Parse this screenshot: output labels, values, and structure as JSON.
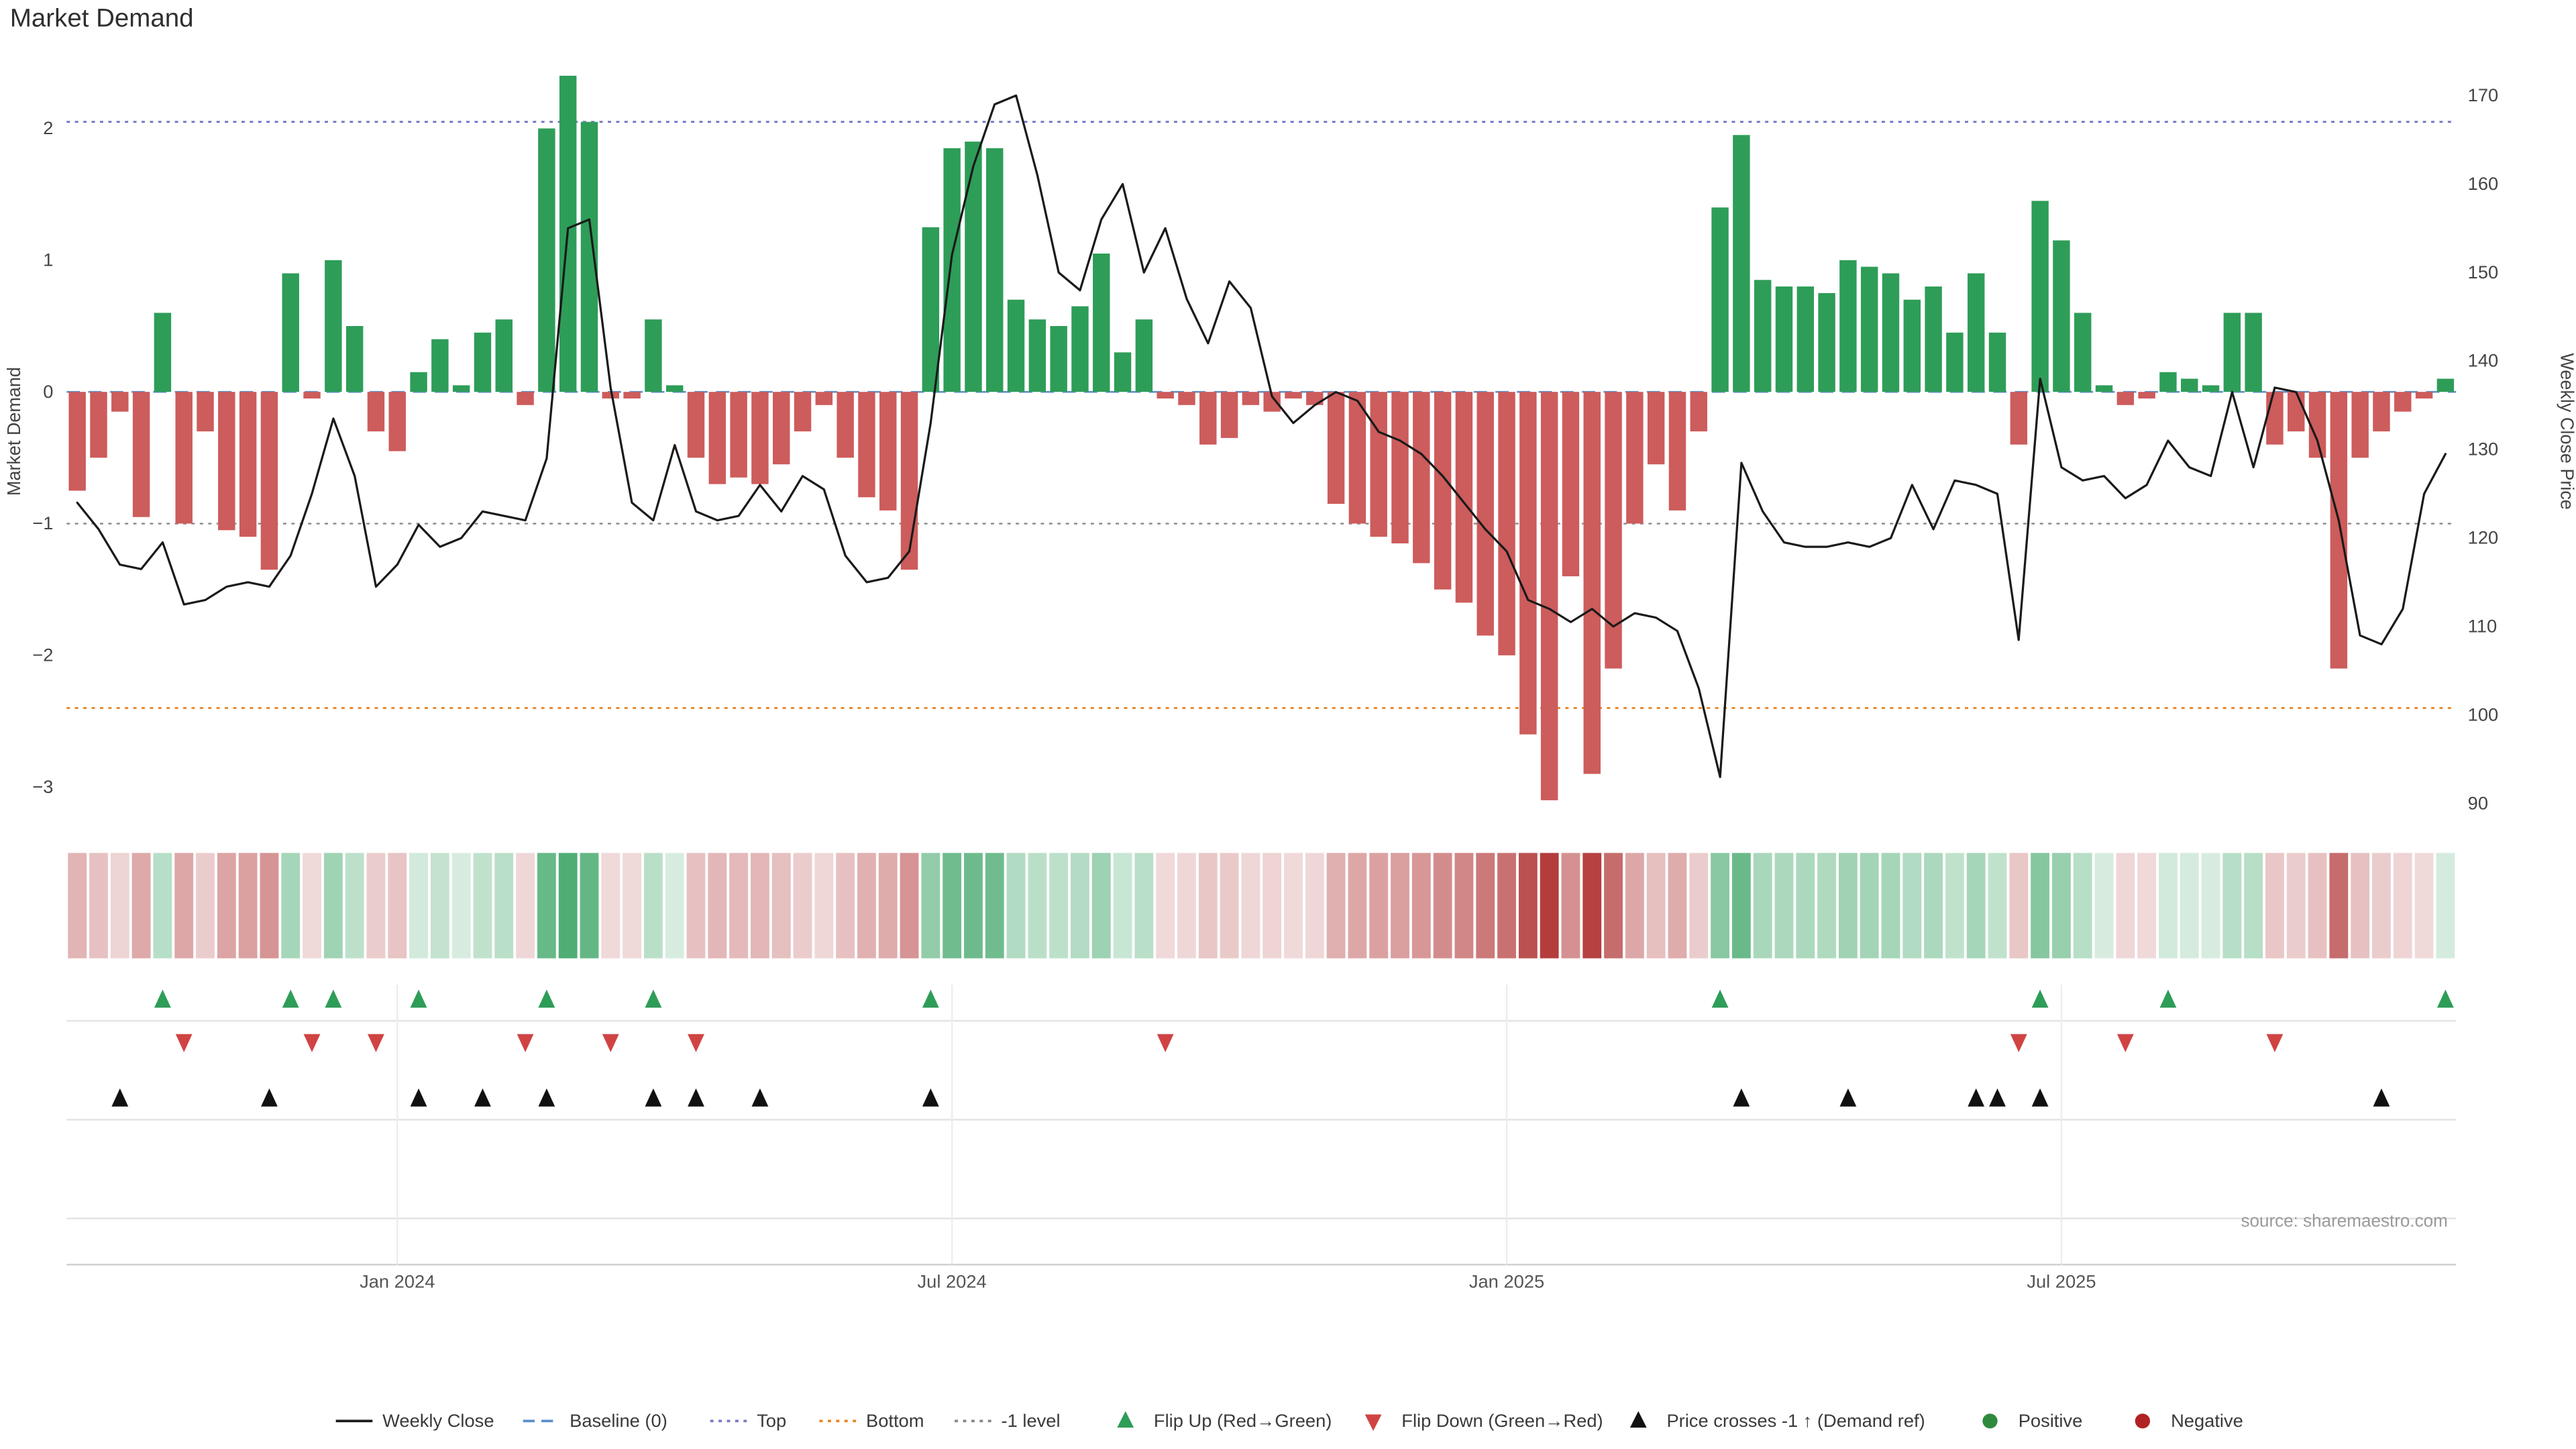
{
  "title": "Market Demand",
  "source": "source: sharemaestro.com",
  "axes": {
    "left_label": "Market Demand",
    "right_label": "Weekly Close Price",
    "left_tick_values": [
      2,
      1,
      0,
      -1,
      -2,
      -3
    ],
    "left_tick_labels": [
      "2",
      "1",
      "0",
      "−1",
      "−2",
      "−3"
    ],
    "right_tick_values": [
      170,
      160,
      150,
      140,
      130,
      120,
      110,
      100,
      90
    ],
    "right_tick_labels": [
      "170",
      "160",
      "150",
      "140",
      "130",
      "120",
      "110",
      "100",
      "90"
    ],
    "month_ticks": [
      {
        "label": "Jan 2024",
        "index": 15.5
      },
      {
        "label": "Jul 2024",
        "index": 41.5
      },
      {
        "label": "Jan 2025",
        "index": 67.5
      },
      {
        "label": "Jul 2025",
        "index": 93.5
      }
    ]
  },
  "colors": {
    "bar_positive": "#2e9d58",
    "bar_negative": "#cd5c5c",
    "heat_positive_base": "#2e9e5a",
    "heat_negative_base": "#b43c3c",
    "price_line": "#1a1a1a",
    "baseline": "#5b8fc9",
    "top_line": "#7a7ac8",
    "bottom_line": "#e8872a",
    "minus_one_line": "#888888",
    "flip_up_marker": "#2e9d58",
    "flip_down_marker": "#d04343",
    "price_cross_marker": "#111111",
    "positive_dot": "#2e8b3e",
    "negative_dot": "#b22222",
    "grid": "#e3e3e3",
    "axis_text": "#444444",
    "source_text": "#9a9a9a"
  },
  "legend": [
    {
      "label": "Weekly Close",
      "icon": "line",
      "color": "#1a1a1a"
    },
    {
      "label": "Baseline (0)",
      "icon": "dash",
      "color": "#5b8fc9"
    },
    {
      "label": "Top",
      "icon": "dot",
      "color": "#7a7ac8"
    },
    {
      "label": "Bottom",
      "icon": "dot",
      "color": "#e8872a"
    },
    {
      "label": "-1 level",
      "icon": "dot",
      "color": "#888888"
    },
    {
      "label": "Flip Up (Red→Green)",
      "icon": "tri-up",
      "color": "#2e9d58"
    },
    {
      "label": "Flip Down (Green→Red)",
      "icon": "tri-down",
      "color": "#d04343"
    },
    {
      "label": "Price crosses -1 ↑ (Demand ref)",
      "icon": "tri-up",
      "color": "#111111"
    },
    {
      "label": "Positive",
      "icon": "circle",
      "color": "#2e8b3e"
    },
    {
      "label": "Negative",
      "icon": "circle",
      "color": "#b22222"
    }
  ],
  "chart_data": {
    "type": "bar+line+heatmap",
    "x_unit": "week",
    "n_weeks": 112,
    "demand_axis_range": [
      -3.2,
      2.5
    ],
    "price_axis_range": [
      88,
      172
    ],
    "reference_lines": {
      "baseline": 0,
      "top": 2.05,
      "bottom": -2.4,
      "minus_one": -1
    },
    "demand": [
      -0.75,
      -0.5,
      -0.15,
      -0.95,
      0.6,
      -1.0,
      -0.3,
      -1.05,
      -1.1,
      -1.35,
      0.9,
      -0.05,
      1.0,
      0.5,
      -0.3,
      -0.45,
      0.15,
      0.4,
      0.05,
      0.45,
      0.55,
      -0.1,
      2.0,
      2.4,
      2.05,
      -0.05,
      -0.05,
      0.55,
      0.05,
      -0.5,
      -0.7,
      -0.65,
      -0.7,
      -0.55,
      -0.3,
      -0.1,
      -0.5,
      -0.8,
      -0.9,
      -1.35,
      1.25,
      1.85,
      1.9,
      1.85,
      0.7,
      0.55,
      0.5,
      0.65,
      1.05,
      0.3,
      0.55,
      -0.05,
      -0.1,
      -0.4,
      -0.35,
      -0.1,
      -0.15,
      -0.05,
      -0.1,
      -0.85,
      -1.0,
      -1.1,
      -1.15,
      -1.3,
      -1.5,
      -1.6,
      -1.85,
      -2.0,
      -2.6,
      -3.1,
      -1.4,
      -2.9,
      -2.1,
      -1.0,
      -0.55,
      -0.9,
      -0.3,
      1.4,
      1.95,
      0.85,
      0.8,
      0.8,
      0.75,
      1.0,
      0.95,
      0.9,
      0.7,
      0.8,
      0.45,
      0.9,
      0.45,
      -0.4,
      1.45,
      1.15,
      0.6,
      0.05,
      -0.1,
      -0.05,
      0.15,
      0.1,
      0.05,
      0.6,
      0.6,
      -0.4,
      -0.3,
      -0.5,
      -2.1,
      -0.5,
      -0.3,
      -0.15,
      -0.05,
      0.1
    ],
    "price": [
      124,
      121,
      117,
      116.5,
      119.5,
      112.5,
      113,
      114.5,
      115,
      114.5,
      118,
      125,
      133.5,
      127,
      114.5,
      117,
      121.5,
      119,
      120,
      123,
      122.5,
      122,
      129,
      155,
      156,
      137,
      124,
      122,
      130.5,
      123,
      122,
      122.5,
      126,
      123,
      127,
      125.5,
      118,
      115,
      115.5,
      118.5,
      133,
      152,
      162,
      169,
      170,
      161,
      150,
      148,
      156,
      160,
      150,
      155,
      147,
      142,
      149,
      146,
      136,
      133,
      135,
      136.5,
      135.5,
      132,
      131,
      129.5,
      127,
      124,
      121,
      118.5,
      113,
      112,
      110.5,
      112,
      110,
      111.5,
      111,
      109.5,
      103,
      93,
      128.5,
      123,
      119.5,
      119,
      119,
      119.5,
      119,
      120,
      126,
      121,
      126.5,
      126,
      125,
      108.5,
      138,
      128,
      126.5,
      127,
      124.5,
      126,
      131,
      128,
      127,
      136.5,
      128,
      137,
      136.5,
      131,
      122,
      109,
      108,
      112,
      125,
      129.5
    ],
    "markers": {
      "flip_up": [
        4,
        10,
        12,
        16,
        22,
        27,
        40,
        77,
        92,
        98,
        111
      ],
      "flip_down": [
        5,
        11,
        14,
        21,
        25,
        29,
        51,
        91,
        96,
        103
      ],
      "price_cross_minus1": [
        2,
        9,
        16,
        19,
        22,
        27,
        29,
        32,
        40,
        78,
        83,
        89,
        90,
        92,
        108
      ]
    }
  }
}
